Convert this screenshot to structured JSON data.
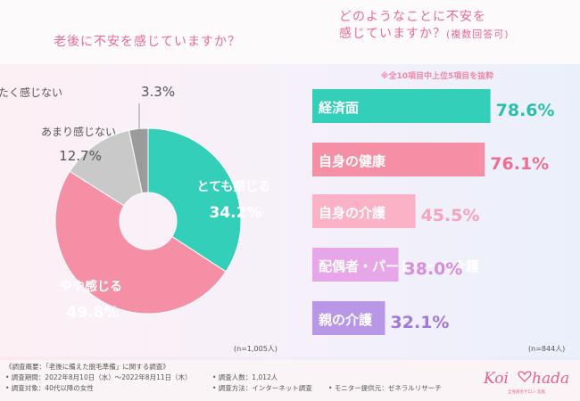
{
  "left_title": "老後に不安を感じていますか？",
  "right_title_line1": "どのようなことに不安を",
  "right_title_line2": "感じていますか？",
  "right_title_sub": "(複数回答可)",
  "right_note": "※全10項目中上位5項目を抜粋",
  "left_n": "(n=1,005人)",
  "right_n": "(n=844人)",
  "chart_data": [
    {
      "type": "pie",
      "donut": true,
      "slices": [
        {
          "label": "とても感じる",
          "value": 34.2,
          "value_text": "34.2%",
          "color": "#34cfb8"
        },
        {
          "label": "やや感じる",
          "value": 49.8,
          "value_text": "49.8%",
          "color": "#f48fa6"
        },
        {
          "label": "あまり感じない",
          "value": 12.7,
          "value_text": "12.7%",
          "color": "#c9c9c9"
        },
        {
          "label": "まったく感じない",
          "value": 3.3,
          "value_text": "3.3%",
          "color": "#9b9b9b"
        }
      ]
    },
    {
      "type": "bar",
      "orientation": "horizontal",
      "categories": [
        "経済面",
        "自身の健康",
        "自身の介護",
        "配偶者・パートナーの介護",
        "親の介護"
      ],
      "values": [
        78.6,
        76.1,
        45.5,
        38.0,
        32.1
      ],
      "value_texts": [
        "78.6%",
        "76.1%",
        "45.5%",
        "38.0%",
        "32.1%"
      ],
      "colors": [
        "#34cfb8",
        "#f48fa6",
        "#fbb2c6",
        "#e7a6e8",
        "#b797e6"
      ],
      "value_colors": [
        "#2bbfa8",
        "#f06f90",
        "#f7a3bb",
        "#d98be0",
        "#9f7ad8"
      ],
      "xlim": [
        0,
        100
      ]
    }
  ],
  "footer": {
    "overview": "《調査概要：「老後に備えた脱毛準備」に関する調査》",
    "period": "• 調査期間：2022年8月10日（水）～2022年8月11日（木）",
    "count": "• 調査人数：1,012人",
    "target": "• 調査対象：40代以降の女性",
    "method": "• 調査方法：インターネット調査",
    "provider": "• モニター提供元：ゼネラルリサーチ"
  },
  "logo": {
    "text_left": "Koi",
    "text_right": "hada",
    "tagline": "全身脱毛サロン 恋肌",
    "color": "#e2628e"
  }
}
